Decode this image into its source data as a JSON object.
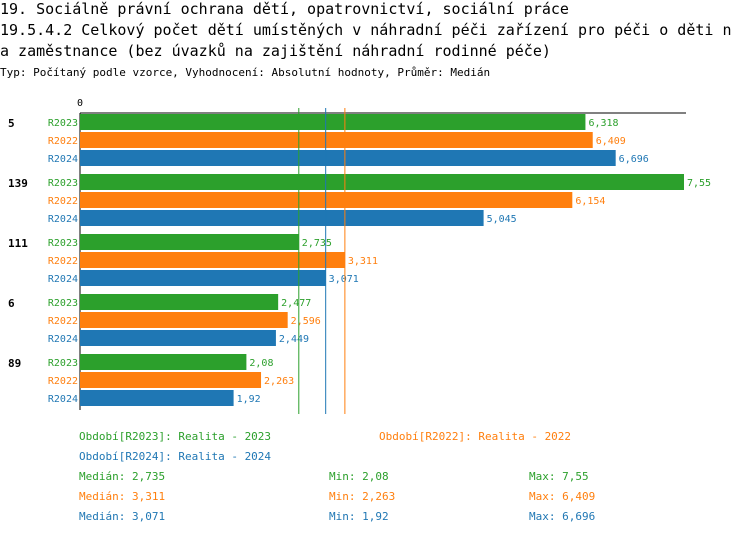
{
  "header": {
    "title_line1": "19. Sociálně právní ochrana dětí, opatrovnictví, sociální práce",
    "title_line2": "19.5.4.2 Celkový počet dětí umístěných v náhradní péči zařízení pro péči o děti n",
    "title_line3": "a zaměstnance (bez úvazků na zajištění náhradní rodinné péče)",
    "subtitle": "Typ: Počítaný podle vzorce, Vyhodnocení: Absolutní hodnoty, Průměr: Medián"
  },
  "colors": {
    "R2023": "#2ca02c",
    "R2022": "#ff7f0e",
    "R2024": "#1f77b4"
  },
  "chart_data": {
    "type": "bar",
    "orientation": "horizontal",
    "axis_zero_label": "0",
    "xlim": [
      0,
      8
    ],
    "categories": [
      "5",
      "139",
      "111",
      "6",
      "89"
    ],
    "series": [
      {
        "name": "R2023",
        "values": [
          6.318,
          7.55,
          2.735,
          2.477,
          2.08
        ],
        "labels": [
          "6,318",
          "7,55",
          "2,735",
          "2,477",
          "2,08"
        ]
      },
      {
        "name": "R2022",
        "values": [
          6.409,
          6.154,
          3.311,
          2.596,
          2.263
        ],
        "labels": [
          "6,409",
          "6,154",
          "3,311",
          "2,596",
          "2,263"
        ]
      },
      {
        "name": "R2024",
        "values": [
          6.696,
          5.045,
          3.071,
          2.449,
          1.92
        ],
        "labels": [
          "6,696",
          "5,045",
          "3,071",
          "2,449",
          "1,92"
        ]
      }
    ],
    "median_lines": {
      "R2023": 2.735,
      "R2022": 3.311,
      "R2024": 3.071
    }
  },
  "legend": {
    "l2023": "Období[R2023]: Realita - 2023",
    "l2022": "Období[R2022]: Realita - 2022",
    "l2024": "Období[R2024]: Realita - 2024"
  },
  "stats": {
    "r2023": {
      "median": "Medián: 2,735",
      "min": "Min: 2,08",
      "max": "Max: 7,55"
    },
    "r2022": {
      "median": "Medián: 3,311",
      "min": "Min: 2,263",
      "max": "Max: 6,409"
    },
    "r2024": {
      "median": "Medián: 3,071",
      "min": "Min: 1,92",
      "max": "Max: 6,696"
    }
  }
}
